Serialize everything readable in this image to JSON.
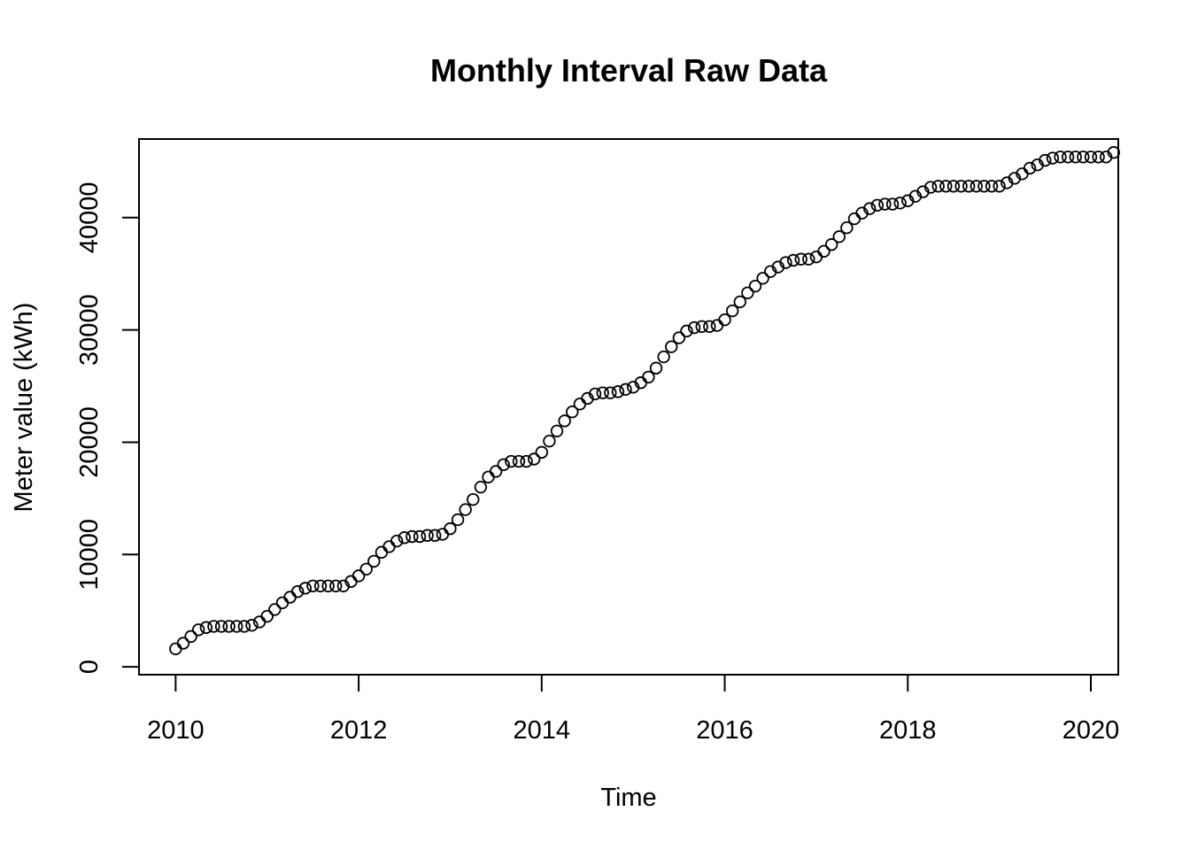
{
  "chart_data": {
    "type": "scatter",
    "title": "Monthly Interval Raw Data",
    "xlabel": "Time",
    "ylabel": "Meter value (kWh)",
    "xlim": [
      2009.6,
      2020.3
    ],
    "ylim": [
      -700,
      47000
    ],
    "x_ticks": [
      2010,
      2012,
      2014,
      2016,
      2018,
      2020
    ],
    "y_ticks": [
      0,
      10000,
      20000,
      30000,
      40000
    ],
    "x_tick_labels": [
      "2010",
      "2012",
      "2014",
      "2016",
      "2018",
      "2020"
    ],
    "y_tick_labels": [
      "0",
      "10000",
      "20000",
      "30000",
      "40000"
    ],
    "grid": false,
    "marker": "open-circle",
    "series": [
      {
        "x_start": 2010,
        "x_step": 0.0833333,
        "values": [
          1600,
          2100,
          2700,
          3300,
          3500,
          3600,
          3600,
          3600,
          3600,
          3600,
          3700,
          4000,
          4500,
          5100,
          5700,
          6200,
          6700,
          7000,
          7200,
          7200,
          7200,
          7200,
          7200,
          7600,
          8100,
          8700,
          9400,
          10200,
          10700,
          11200,
          11500,
          11600,
          11600,
          11700,
          11700,
          11800,
          12300,
          13100,
          14000,
          14900,
          16000,
          16900,
          17400,
          18000,
          18300,
          18300,
          18300,
          18500,
          19100,
          20100,
          21000,
          21900,
          22700,
          23400,
          23900,
          24300,
          24400,
          24400,
          24500,
          24700,
          24900,
          25300,
          25800,
          26600,
          27600,
          28500,
          29300,
          29900,
          30200,
          30300,
          30300,
          30400,
          30900,
          31700,
          32500,
          33300,
          33900,
          34600,
          35200,
          35600,
          36000,
          36200,
          36300,
          36300,
          36500,
          37000,
          37600,
          38300,
          39100,
          39900,
          40400,
          40800,
          41100,
          41200,
          41200,
          41300,
          41500,
          41900,
          42300,
          42700,
          42800,
          42800,
          42800,
          42800,
          42800,
          42800,
          42800,
          42800,
          42800,
          43100,
          43500,
          43900,
          44400,
          44700,
          45100,
          45300,
          45400,
          45400,
          45400,
          45400,
          45400,
          45400,
          45400,
          45800
        ]
      }
    ]
  }
}
